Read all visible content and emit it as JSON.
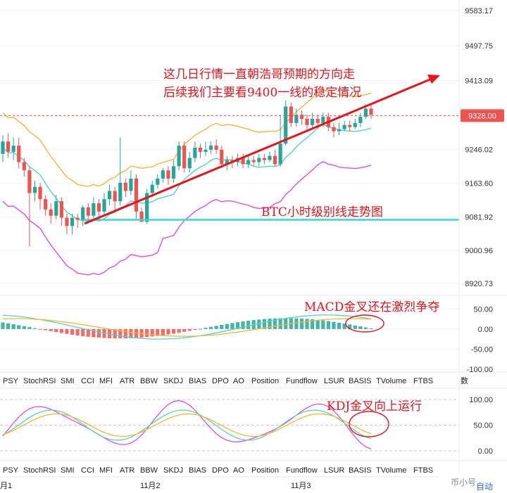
{
  "chart_data": {
    "type": "candlestick",
    "instrument": "BTC",
    "main": {
      "y_axis_ticks": [
        "9583.17",
        "9497.75",
        "9413.09",
        "9328.00",
        "9246.02",
        "9163.60",
        "9081.92",
        "9000.96",
        "8920.73"
      ],
      "ylim": [
        8900,
        9600
      ],
      "current_price": 9328.0,
      "support_level": 9075,
      "candles": [
        [
          9235,
          9265,
          9215,
          9280
        ],
        [
          9265,
          9240,
          9225,
          9285
        ],
        [
          9240,
          9255,
          9220,
          9275
        ],
        [
          9255,
          9215,
          9200,
          9275
        ],
        [
          9215,
          9195,
          9180,
          9225
        ],
        [
          9195,
          9140,
          9010,
          9205
        ],
        [
          9140,
          9155,
          9120,
          9170
        ],
        [
          9155,
          9125,
          9100,
          9165
        ],
        [
          9125,
          9100,
          9085,
          9135
        ],
        [
          9100,
          9085,
          9065,
          9115
        ],
        [
          9085,
          9120,
          9075,
          9135
        ],
        [
          9120,
          9080,
          9060,
          9130
        ],
        [
          9080,
          9060,
          9040,
          9090
        ],
        [
          9060,
          9080,
          9040,
          9090
        ],
        [
          9080,
          9075,
          9055,
          9090
        ],
        [
          9075,
          9105,
          9060,
          9110
        ],
        [
          9105,
          9085,
          9070,
          9115
        ],
        [
          9085,
          9115,
          9075,
          9130
        ],
        [
          9115,
          9095,
          9080,
          9125
        ],
        [
          9095,
          9125,
          9085,
          9140
        ],
        [
          9125,
          9145,
          9110,
          9160
        ],
        [
          9145,
          9120,
          9095,
          9155
        ],
        [
          9120,
          9165,
          9110,
          9275
        ],
        [
          9165,
          9145,
          9130,
          9175
        ],
        [
          9145,
          9175,
          9135,
          9195
        ],
        [
          9175,
          9095,
          9075,
          9185
        ],
        [
          9095,
          9070,
          9070,
          9105
        ],
        [
          9070,
          9140,
          9065,
          9150
        ],
        [
          9140,
          9160,
          9130,
          9170
        ],
        [
          9160,
          9175,
          9150,
          9185
        ],
        [
          9175,
          9195,
          9165,
          9200
        ],
        [
          9195,
          9175,
          9160,
          9205
        ],
        [
          9175,
          9205,
          9165,
          9220
        ],
        [
          9205,
          9255,
          9195,
          9265
        ],
        [
          9255,
          9200,
          9190,
          9265
        ],
        [
          9200,
          9225,
          9190,
          9240
        ],
        [
          9225,
          9250,
          9215,
          9265
        ],
        [
          9250,
          9240,
          9225,
          9260
        ],
        [
          9240,
          9245,
          9230,
          9265
        ],
        [
          9245,
          9255,
          9235,
          9265
        ],
        [
          9255,
          9245,
          9235,
          9270
        ],
        [
          9245,
          9210,
          9200,
          9255
        ],
        [
          9210,
          9220,
          9195,
          9230
        ],
        [
          9220,
          9215,
          9200,
          9230
        ],
        [
          9215,
          9225,
          9205,
          9235
        ],
        [
          9225,
          9210,
          9200,
          9235
        ],
        [
          9210,
          9220,
          9200,
          9230
        ],
        [
          9220,
          9215,
          9205,
          9230
        ],
        [
          9215,
          9225,
          9205,
          9235
        ],
        [
          9225,
          9220,
          9210,
          9235
        ],
        [
          9220,
          9230,
          9215,
          9240
        ],
        [
          9230,
          9210,
          9205,
          9245
        ],
        [
          9210,
          9260,
          9205,
          9330
        ],
        [
          9260,
          9350,
          9255,
          9365
        ],
        [
          9350,
          9310,
          9300,
          9360
        ],
        [
          9310,
          9330,
          9300,
          9345
        ],
        [
          9330,
          9320,
          9305,
          9340
        ],
        [
          9320,
          9305,
          9290,
          9330
        ],
        [
          9305,
          9320,
          9295,
          9335
        ],
        [
          9320,
          9310,
          9295,
          9330
        ],
        [
          9310,
          9325,
          9300,
          9335
        ],
        [
          9325,
          9300,
          9290,
          9335
        ],
        [
          9300,
          9290,
          9275,
          9310
        ],
        [
          9290,
          9295,
          9280,
          9310
        ],
        [
          9295,
          9305,
          9290,
          9315
        ],
        [
          9305,
          9300,
          9290,
          9315
        ],
        [
          9300,
          9310,
          9295,
          9320
        ],
        [
          9310,
          9325,
          9300,
          9335
        ],
        [
          9325,
          9345,
          9320,
          9355
        ],
        [
          9345,
          9330,
          9320,
          9355
        ]
      ]
    },
    "macd": {
      "y_axis_ticks": [
        "50.00",
        "0.00",
        "-50.00",
        "-100.00"
      ],
      "ylim": [
        -100,
        75
      ]
    },
    "kdj": {
      "y_axis_ticks": [
        "100.00",
        "50.00",
        "0.00"
      ],
      "ylim": [
        -15,
        115
      ]
    },
    "indicator_tabs": [
      "PSY",
      "StochRSI",
      "SMI",
      "CCI",
      "MFI",
      "ATR",
      "BBW",
      "SKDJ",
      "BIAS",
      "DPO",
      "AO",
      "Position",
      "Fundflow",
      "LSUR",
      "BASIS",
      "TVolume",
      "FTBS"
    ],
    "x_axis_labels": [
      "月1",
      "11月2",
      "11月3"
    ],
    "annotations": {
      "line1": "这几日行情一直朝浩哥预期的方向走",
      "line2": "后续我们主要看9400一线的稳定情况",
      "support_label": "BTC小时级别线走势图",
      "macd_label": "MACD金叉还在激烈争夺",
      "kdj_label": "KDJ金叉向上运行"
    },
    "watermark": [
      "币小号",
      "自动"
    ],
    "tab_overlay": "数",
    "colors": {
      "up": "#26a69a",
      "down": "#ef5350",
      "annotation": "#e8131b",
      "support": "#35d7d7",
      "upper_band": "#f4b73c",
      "lower_band": "#56d3c2",
      "magenta": "#e34ddf"
    }
  }
}
